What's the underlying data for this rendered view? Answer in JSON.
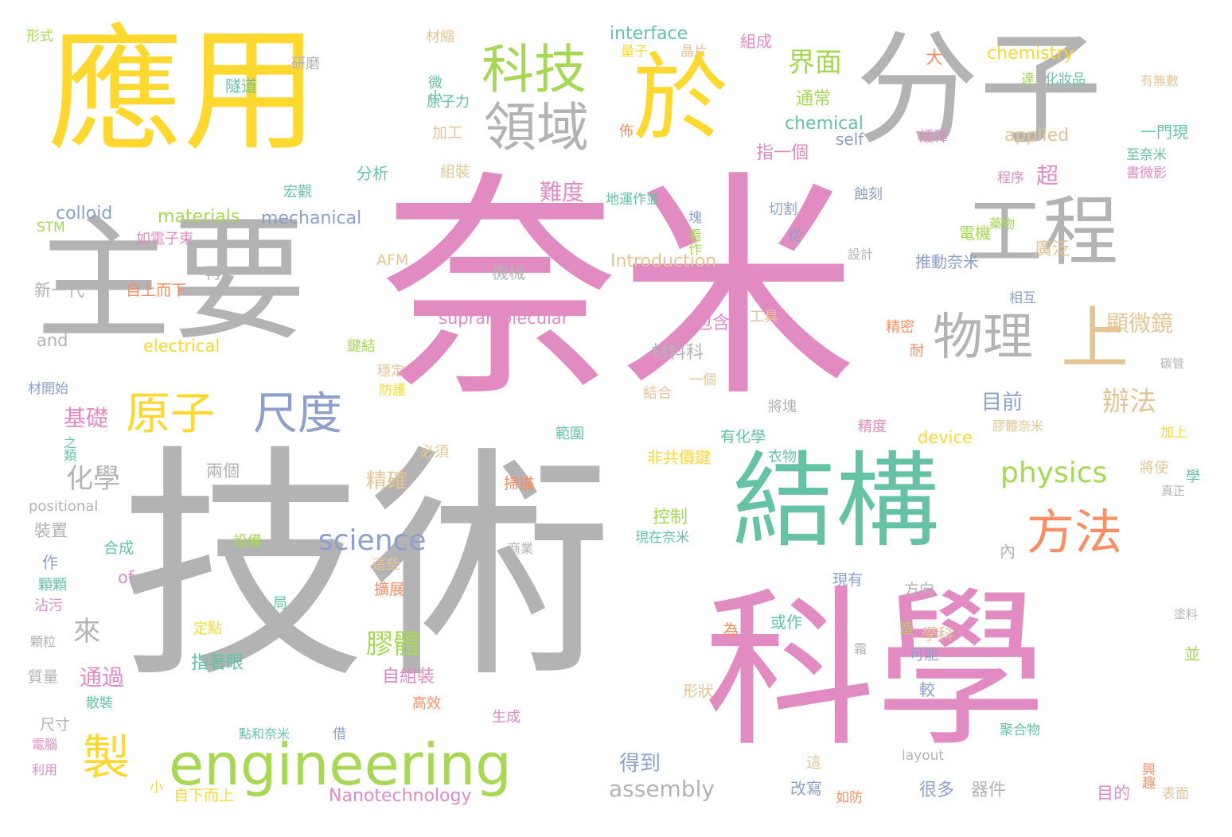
{
  "palette": {
    "pink": "#e28bc3",
    "gray": "#b3b3b3",
    "yellow": "#fed82f",
    "green": "#a6d854",
    "teal": "#66c2a5",
    "orange": "#fc8d62",
    "blue": "#8da0cb",
    "tan": "#e5c494"
  },
  "words": [
    {
      "text": "奈米",
      "color": "pink"
    },
    {
      "text": "技術",
      "color": "gray"
    },
    {
      "text": "科學",
      "color": "pink"
    },
    {
      "text": "應用",
      "color": "yellow"
    },
    {
      "text": "主要",
      "color": "gray"
    },
    {
      "text": "分子",
      "color": "gray"
    },
    {
      "text": "於",
      "color": "yellow"
    },
    {
      "text": "結構",
      "color": "teal"
    },
    {
      "text": "工程",
      "color": "gray"
    },
    {
      "text": "上",
      "color": "tan"
    },
    {
      "text": "engineering",
      "color": "green"
    },
    {
      "text": "科技",
      "color": "green"
    },
    {
      "text": "領域",
      "color": "gray"
    },
    {
      "text": "方法",
      "color": "orange"
    },
    {
      "text": "物理",
      "color": "gray"
    },
    {
      "text": "原子",
      "color": "yellow"
    },
    {
      "text": "尺度",
      "color": "blue"
    },
    {
      "text": "製",
      "color": "yellow"
    },
    {
      "text": "physics",
      "color": "green"
    },
    {
      "text": "science",
      "color": "blue"
    },
    {
      "text": "界面",
      "color": "green"
    },
    {
      "text": "化學",
      "color": "gray"
    },
    {
      "text": "來",
      "color": "gray"
    },
    {
      "text": "辦法",
      "color": "tan"
    },
    {
      "text": "膠體",
      "color": "green"
    },
    {
      "text": "顯微鏡",
      "color": "tan"
    },
    {
      "text": "assembly",
      "color": "gray"
    },
    {
      "text": "難度",
      "color": "pink"
    },
    {
      "text": "超",
      "color": "pink"
    },
    {
      "text": "基礎",
      "color": "pink"
    },
    {
      "text": "通過",
      "color": "pink"
    },
    {
      "text": "精確",
      "color": "tan"
    },
    {
      "text": "得到",
      "color": "blue"
    },
    {
      "text": "目前",
      "color": "blue"
    },
    {
      "text": "Nanotechnology",
      "color": "pink"
    },
    {
      "text": "interface",
      "color": "teal"
    },
    {
      "text": "chemistry",
      "color": "yellow"
    },
    {
      "text": "chemical",
      "color": "teal"
    },
    {
      "text": "applied",
      "color": "tan"
    },
    {
      "text": "self",
      "color": "blue"
    },
    {
      "text": "materials",
      "color": "green"
    },
    {
      "text": "mechanical",
      "color": "blue"
    },
    {
      "text": "colloid",
      "color": "blue"
    },
    {
      "text": "Introduction",
      "color": "tan"
    },
    {
      "text": "supramolecular",
      "color": "pink"
    },
    {
      "text": "electrical",
      "color": "yellow"
    },
    {
      "text": "device",
      "color": "yellow"
    },
    {
      "text": "and",
      "color": "gray"
    },
    {
      "text": "positional",
      "color": "gray"
    },
    {
      "text": "of",
      "color": "pink"
    },
    {
      "text": "STM",
      "color": "green"
    },
    {
      "text": "AFM",
      "color": "tan"
    },
    {
      "text": "layout",
      "color": "gray"
    },
    {
      "text": "通常",
      "color": "green"
    },
    {
      "text": "指一個",
      "color": "pink"
    },
    {
      "text": "很多",
      "color": "blue"
    },
    {
      "text": "器件",
      "color": "gray"
    },
    {
      "text": "廣泛",
      "color": "tan"
    },
    {
      "text": "控制",
      "color": "green"
    },
    {
      "text": "包含",
      "color": "pink"
    },
    {
      "text": "材料科",
      "color": "gray"
    },
    {
      "text": "自組裝",
      "color": "pink"
    },
    {
      "text": "指著眼",
      "color": "teal"
    },
    {
      "text": "推動奈米",
      "color": "blue"
    },
    {
      "text": "電機",
      "color": "green"
    },
    {
      "text": "一門現",
      "color": "teal"
    },
    {
      "text": "至奈米",
      "color": "teal"
    },
    {
      "text": "書微影",
      "color": "pink"
    },
    {
      "text": "程序",
      "color": "pink"
    },
    {
      "text": "化妝品",
      "color": "teal"
    },
    {
      "text": "有無數",
      "color": "tan"
    },
    {
      "text": "緩釋",
      "color": "pink"
    },
    {
      "text": "組成",
      "color": "pink"
    },
    {
      "text": "量子",
      "color": "yellow"
    },
    {
      "text": "晶片",
      "color": "tan"
    },
    {
      "text": "大",
      "color": "orange"
    },
    {
      "text": "達",
      "color": "green"
    },
    {
      "text": "佈",
      "color": "orange"
    },
    {
      "text": "微小",
      "color": "teal"
    },
    {
      "text": "原子力",
      "color": "teal"
    },
    {
      "text": "材縮",
      "color": "tan"
    },
    {
      "text": "研磨",
      "color": "gray"
    },
    {
      "text": "隧道",
      "color": "teal"
    },
    {
      "text": "形式",
      "color": "green"
    },
    {
      "text": "加工",
      "color": "tan"
    },
    {
      "text": "組裝",
      "color": "tan"
    },
    {
      "text": "分析",
      "color": "teal"
    },
    {
      "text": "宏觀",
      "color": "teal"
    },
    {
      "text": "地運作並",
      "color": "teal"
    },
    {
      "text": "蝕刻",
      "color": "blue"
    },
    {
      "text": "塊",
      "color": "blue"
    },
    {
      "text": "切割",
      "color": "blue"
    },
    {
      "text": "從",
      "color": "blue"
    },
    {
      "text": "看作",
      "color": "green"
    },
    {
      "text": "設計",
      "color": "gray"
    },
    {
      "text": "藥物",
      "color": "green"
    },
    {
      "text": "機械",
      "color": "gray"
    },
    {
      "text": "再",
      "color": "gray"
    },
    {
      "text": "如電子束",
      "color": "pink"
    },
    {
      "text": "新一代",
      "color": "gray"
    },
    {
      "text": "自上而下",
      "color": "orange"
    },
    {
      "text": "工具",
      "color": "tan"
    },
    {
      "text": "相互",
      "color": "blue"
    },
    {
      "text": "精密",
      "color": "orange"
    },
    {
      "text": "耐",
      "color": "orange"
    },
    {
      "text": "碳管",
      "color": "gray"
    },
    {
      "text": "鍵結",
      "color": "green"
    },
    {
      "text": "穩定",
      "color": "tan"
    },
    {
      "text": "防護",
      "color": "yellow"
    },
    {
      "text": "結合",
      "color": "tan"
    },
    {
      "text": "一個",
      "color": "tan"
    },
    {
      "text": "將塊",
      "color": "gray"
    },
    {
      "text": "精度",
      "color": "pink"
    },
    {
      "text": "膠體奈米",
      "color": "tan"
    },
    {
      "text": "加上",
      "color": "yellow"
    },
    {
      "text": "材開始",
      "color": "blue"
    },
    {
      "text": "之類",
      "color": "teal"
    },
    {
      "text": "必須",
      "color": "tan"
    },
    {
      "text": "範圍",
      "color": "teal"
    },
    {
      "text": "有化學",
      "color": "teal"
    },
    {
      "text": "非共價鍵",
      "color": "yellow"
    },
    {
      "text": "衣物",
      "color": "teal"
    },
    {
      "text": "將使",
      "color": "tan"
    },
    {
      "text": "學",
      "color": "teal"
    },
    {
      "text": "真正",
      "color": "gray"
    },
    {
      "text": "兩個",
      "color": "gray"
    },
    {
      "text": "掃描",
      "color": "orange"
    },
    {
      "text": "裝置",
      "color": "gray"
    },
    {
      "text": "設備",
      "color": "green"
    },
    {
      "text": "商業",
      "color": "gray"
    },
    {
      "text": "現在奈米",
      "color": "teal"
    },
    {
      "text": "內",
      "color": "gray"
    },
    {
      "text": "合成",
      "color": "teal"
    },
    {
      "text": "作",
      "color": "blue"
    },
    {
      "text": "這些",
      "color": "tan"
    },
    {
      "text": "顆顆",
      "color": "teal"
    },
    {
      "text": "沾污",
      "color": "pink"
    },
    {
      "text": "擴展",
      "color": "orange"
    },
    {
      "text": "現有",
      "color": "blue"
    },
    {
      "text": "方向",
      "color": "gray"
    },
    {
      "text": "局",
      "color": "teal"
    },
    {
      "text": "塗料",
      "color": "gray"
    },
    {
      "text": "顆粒",
      "color": "gray"
    },
    {
      "text": "定點",
      "color": "yellow"
    },
    {
      "text": "為",
      "color": "orange"
    },
    {
      "text": "或作",
      "color": "teal"
    },
    {
      "text": "造",
      "color": "green"
    },
    {
      "text": "學科",
      "color": "tan"
    },
    {
      "text": "並",
      "color": "green"
    },
    {
      "text": "霜",
      "color": "gray"
    },
    {
      "text": "可能",
      "color": "blue"
    },
    {
      "text": "質量",
      "color": "gray"
    },
    {
      "text": "散裝",
      "color": "teal"
    },
    {
      "text": "高效",
      "color": "orange"
    },
    {
      "text": "形狀",
      "color": "tan"
    },
    {
      "text": "較",
      "color": "blue"
    },
    {
      "text": "尺寸",
      "color": "gray"
    },
    {
      "text": "生成",
      "color": "pink"
    },
    {
      "text": "點和奈米",
      "color": "teal"
    },
    {
      "text": "借",
      "color": "blue"
    },
    {
      "text": "聚合物",
      "color": "teal"
    },
    {
      "text": "電腦",
      "color": "pink"
    },
    {
      "text": "利用",
      "color": "pink"
    },
    {
      "text": "小",
      "color": "yellow"
    },
    {
      "text": "自下而上",
      "color": "yellow"
    },
    {
      "text": "這",
      "color": "tan"
    },
    {
      "text": "改寫",
      "color": "blue"
    },
    {
      "text": "如防",
      "color": "orange"
    },
    {
      "text": "目的",
      "color": "pink"
    },
    {
      "text": "興趣",
      "color": "orange"
    },
    {
      "text": "表面",
      "color": "tan"
    }
  ]
}
